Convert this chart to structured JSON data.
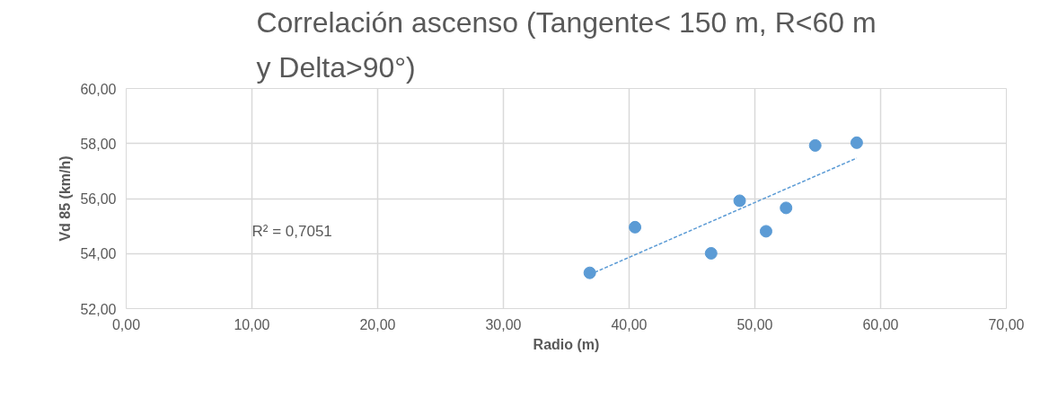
{
  "chart_data": {
    "type": "scatter",
    "title": "Correlación ascenso (Tangente< 150 m, R<60 m y Delta>90°)",
    "xlabel": "Radio (m)",
    "ylabel": "Vd 85 (km/h)",
    "x": [
      36.87,
      40.47,
      46.52,
      48.79,
      50.89,
      52.48,
      54.8,
      58.1
    ],
    "series": [
      {
        "color": "#5b9bd5",
        "marker": "circle",
        "values": [
          53.3,
          54.96,
          54.01,
          55.92,
          54.81,
          55.66,
          57.93,
          58.03
        ]
      },
      {
        "type": "line",
        "color": "#5b9bd5",
        "line_style": "dashed",
        "marker": "none",
        "x": [
          36.87,
          58.1
        ],
        "values": [
          53.24,
          57.47
        ]
      }
    ],
    "annotations": [
      "R² = 0,7051"
    ],
    "xlim": [
      0,
      70
    ],
    "ylim": [
      52,
      60
    ],
    "xticks": [
      {
        "value": 0,
        "label": "0,00"
      },
      {
        "value": 10,
        "label": "10,00"
      },
      {
        "value": 20,
        "label": "20,00"
      },
      {
        "value": 30,
        "label": "30,00"
      },
      {
        "value": 40,
        "label": "40,00"
      },
      {
        "value": 50,
        "label": "50,00"
      },
      {
        "value": 60,
        "label": "60,00"
      },
      {
        "value": 70,
        "label": "70,00"
      }
    ],
    "yticks": [
      {
        "value": 52,
        "label": "52,00"
      },
      {
        "value": 54,
        "label": "54,00"
      },
      {
        "value": 56,
        "label": "56,00"
      },
      {
        "value": 58,
        "label": "58,00"
      },
      {
        "value": 60,
        "label": "60,00"
      }
    ],
    "grid": true
  }
}
